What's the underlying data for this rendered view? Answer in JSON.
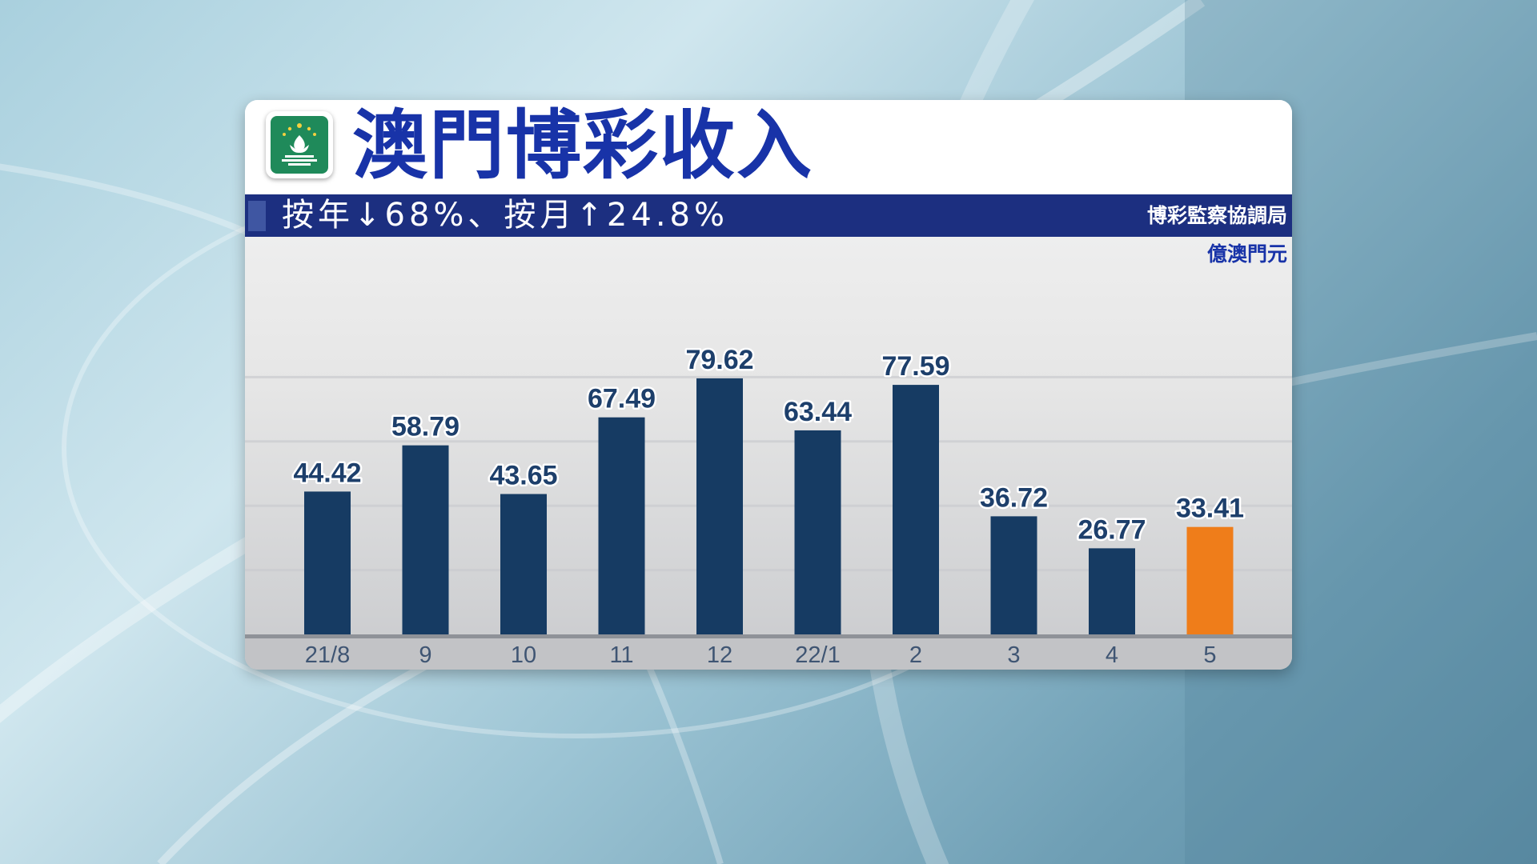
{
  "header": {
    "title": "澳門博彩收入",
    "subtitle": "按年↓68%、按月↑24.8%",
    "source": "博彩監察協調局",
    "unit": "億澳門元"
  },
  "emblem": {
    "icon": "macau-flag-icon",
    "color": "#1f8a5a"
  },
  "colors": {
    "bar": "#163b63",
    "highlight_bar": "#ef7d1a",
    "title": "#1833a8",
    "subtitle_bar": "#1c2f80"
  },
  "chart_data": {
    "type": "bar",
    "title": "澳門博彩收入",
    "subtitle": "按年↓68%、按月↑24.8%",
    "ylabel": "億澳門元",
    "xlabel": "",
    "categories": [
      "21/8",
      "9",
      "10",
      "11",
      "12",
      "22/1",
      "2",
      "3",
      "4",
      "5"
    ],
    "values": [
      44.42,
      58.79,
      43.65,
      67.49,
      79.62,
      63.44,
      77.59,
      36.72,
      26.77,
      33.41
    ],
    "value_labels": [
      "44.42",
      "58.79",
      "43.65",
      "67.49",
      "79.62",
      "63.44",
      "77.59",
      "36.72",
      "26.77",
      "33.41"
    ],
    "highlight_index": 9,
    "ylim": [
      0,
      100
    ],
    "grid": true,
    "legend": "none"
  }
}
